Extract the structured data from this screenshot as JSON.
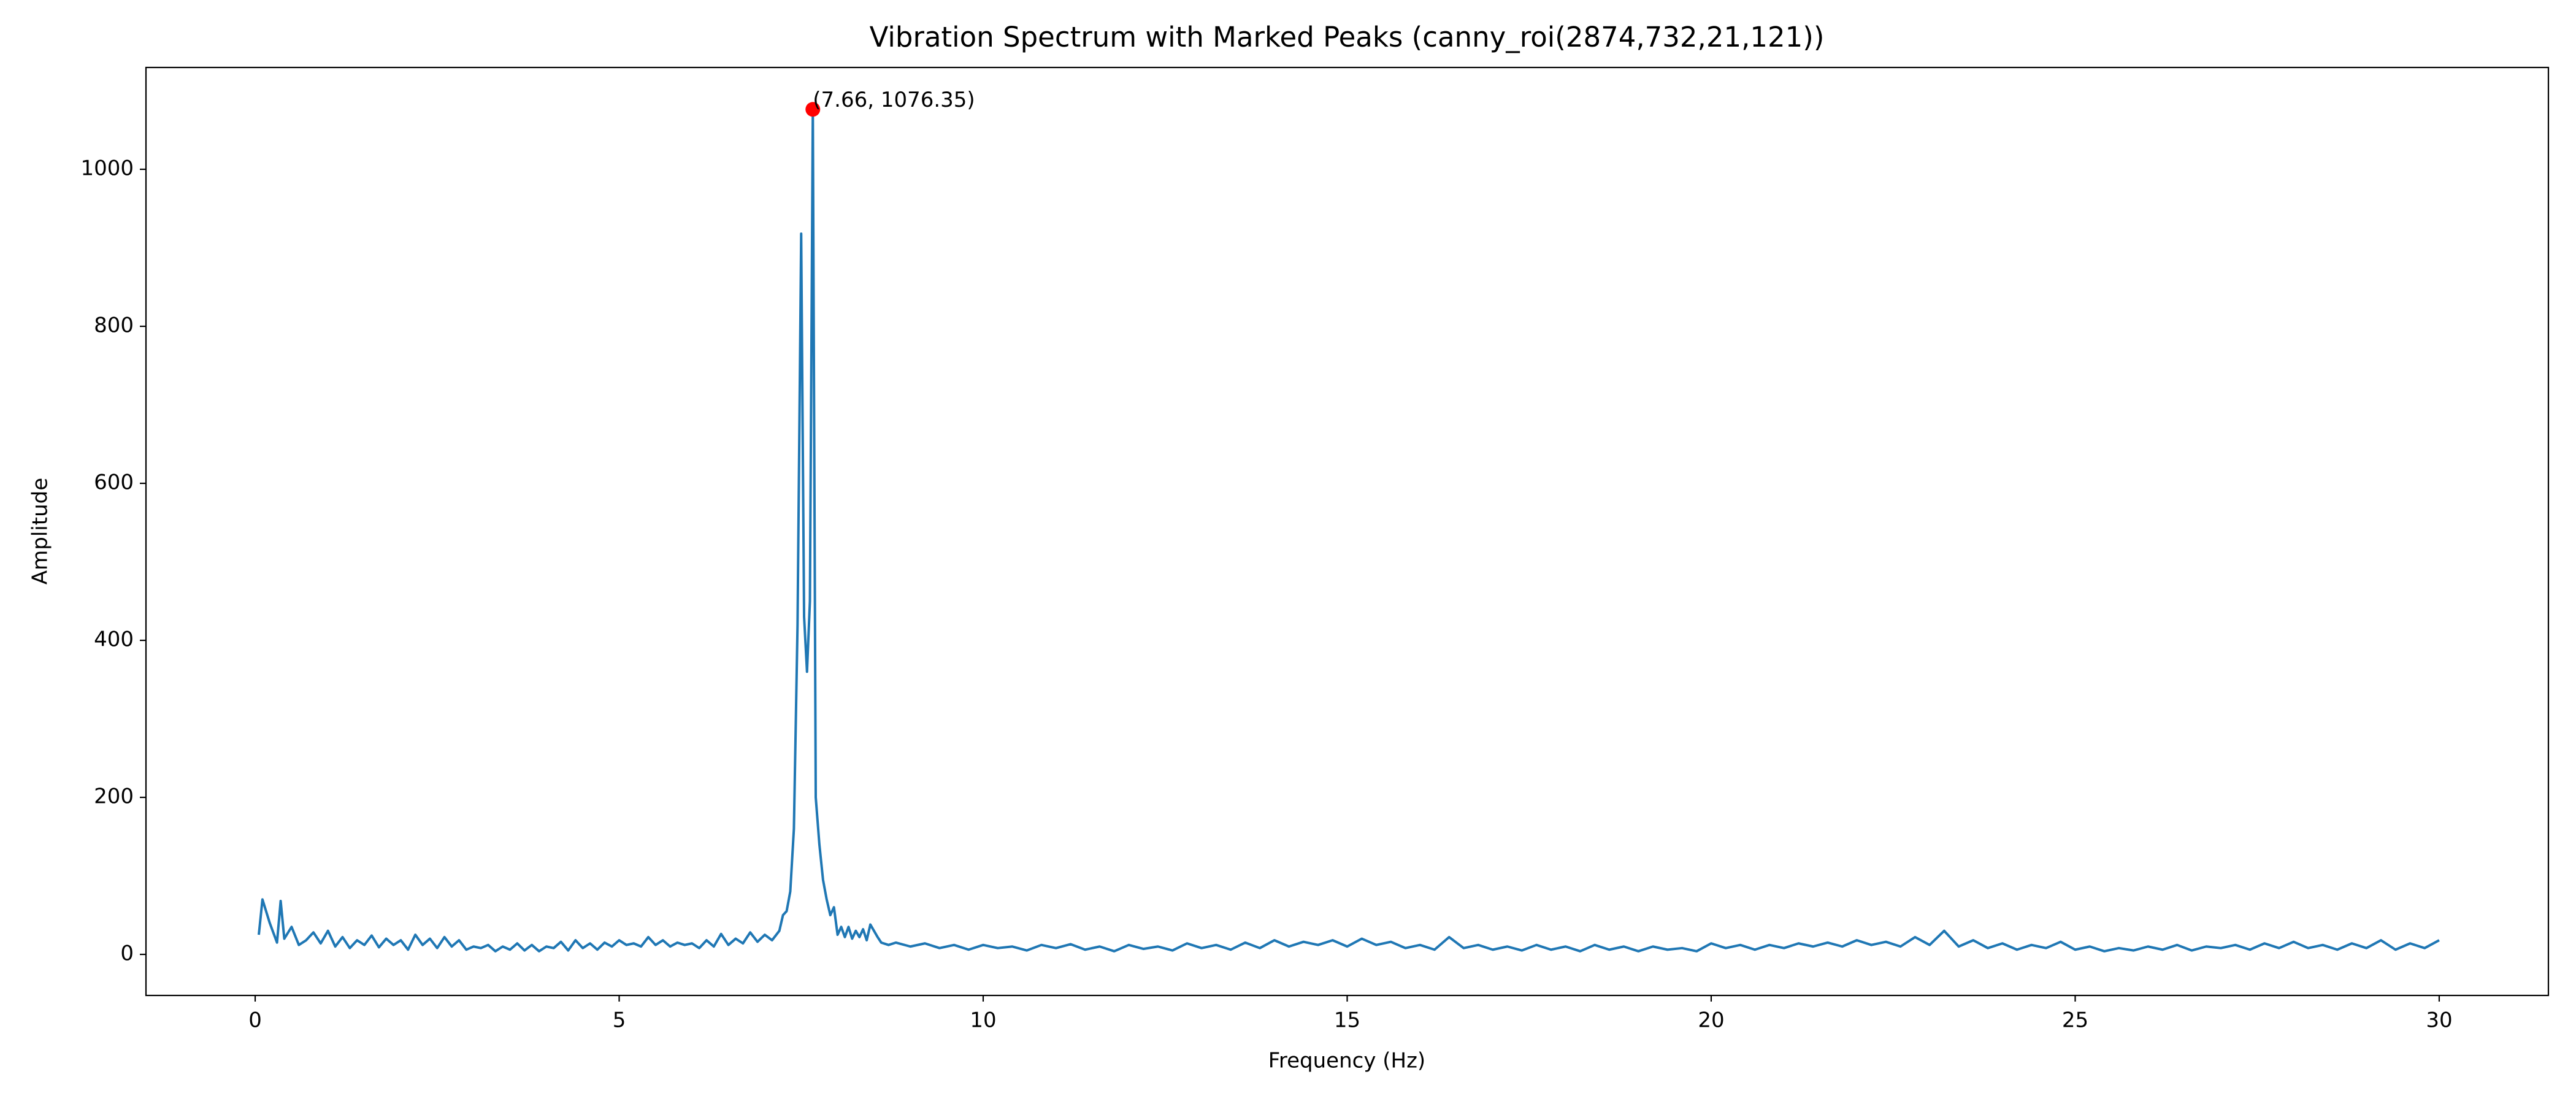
{
  "chart_data": {
    "type": "line",
    "title": "Vibration Spectrum with Marked Peaks (canny_roi(2874,732,21,121))",
    "x_label": "Frequency (Hz)",
    "y_label": "Amplitude",
    "xlim": [
      -1.5,
      31.5
    ],
    "ylim": [
      -52.3,
      1129.7
    ],
    "xticks": [
      0,
      5,
      10,
      15,
      20,
      25,
      30
    ],
    "yticks": [
      0,
      200,
      400,
      600,
      800,
      1000
    ],
    "grid": false,
    "x": [
      0.05,
      0.1,
      0.2,
      0.3,
      0.35,
      0.4,
      0.5,
      0.6,
      0.7,
      0.8,
      0.9,
      1.0,
      1.1,
      1.2,
      1.3,
      1.4,
      1.5,
      1.6,
      1.7,
      1.8,
      1.9,
      2.0,
      2.1,
      2.2,
      2.3,
      2.4,
      2.5,
      2.6,
      2.7,
      2.8,
      2.9,
      3.0,
      3.1,
      3.2,
      3.3,
      3.4,
      3.5,
      3.6,
      3.7,
      3.8,
      3.9,
      4.0,
      4.1,
      4.2,
      4.3,
      4.4,
      4.5,
      4.6,
      4.7,
      4.8,
      4.9,
      5.0,
      5.1,
      5.2,
      5.3,
      5.4,
      5.5,
      5.6,
      5.7,
      5.8,
      5.9,
      6.0,
      6.1,
      6.2,
      6.3,
      6.4,
      6.5,
      6.6,
      6.7,
      6.8,
      6.9,
      7.0,
      7.1,
      7.2,
      7.25,
      7.3,
      7.35,
      7.4,
      7.45,
      7.5,
      7.54,
      7.58,
      7.62,
      7.66,
      7.7,
      7.75,
      7.8,
      7.85,
      7.9,
      7.95,
      8.0,
      8.05,
      8.1,
      8.15,
      8.2,
      8.25,
      8.3,
      8.35,
      8.4,
      8.45,
      8.5,
      8.55,
      8.6,
      8.7,
      8.8,
      9.0,
      9.2,
      9.4,
      9.6,
      9.8,
      10.0,
      10.2,
      10.4,
      10.6,
      10.8,
      11.0,
      11.2,
      11.4,
      11.6,
      11.8,
      12.0,
      12.2,
      12.4,
      12.6,
      12.8,
      13.0,
      13.2,
      13.4,
      13.6,
      13.8,
      14.0,
      14.2,
      14.4,
      14.6,
      14.8,
      15.0,
      15.2,
      15.4,
      15.6,
      15.8,
      16.0,
      16.2,
      16.4,
      16.6,
      16.8,
      17.0,
      17.2,
      17.4,
      17.6,
      17.8,
      18.0,
      18.2,
      18.4,
      18.6,
      18.8,
      19.0,
      19.2,
      19.4,
      19.6,
      19.8,
      20.0,
      20.2,
      20.4,
      20.6,
      20.8,
      21.0,
      21.2,
      21.4,
      21.6,
      21.8,
      22.0,
      22.2,
      22.4,
      22.6,
      22.8,
      23.0,
      23.2,
      23.4,
      23.6,
      23.8,
      24.0,
      24.2,
      24.4,
      24.6,
      24.8,
      25.0,
      25.2,
      25.4,
      25.6,
      25.8,
      26.0,
      26.2,
      26.4,
      26.6,
      26.8,
      27.0,
      27.2,
      27.4,
      27.6,
      27.8,
      28.0,
      28.2,
      28.4,
      28.6,
      28.8,
      29.0,
      29.2,
      29.4,
      29.6,
      29.8,
      30.0
    ],
    "series": [
      {
        "color": "#1f77b4",
        "values": [
          25,
          70,
          40,
          15,
          68,
          20,
          35,
          12,
          18,
          28,
          14,
          30,
          10,
          22,
          8,
          18,
          12,
          24,
          9,
          20,
          12,
          18,
          6,
          25,
          12,
          20,
          8,
          22,
          10,
          18,
          6,
          10,
          8,
          12,
          4,
          10,
          6,
          14,
          5,
          12,
          4,
          10,
          8,
          16,
          5,
          18,
          8,
          14,
          6,
          15,
          10,
          18,
          12,
          14,
          10,
          22,
          12,
          18,
          10,
          15,
          12,
          14,
          8,
          18,
          10,
          26,
          12,
          20,
          14,
          28,
          16,
          25,
          18,
          30,
          50,
          55,
          80,
          160,
          420,
          918,
          430,
          360,
          450,
          1076.35,
          200,
          140,
          95,
          70,
          50,
          60,
          25,
          35,
          22,
          35,
          20,
          30,
          22,
          32,
          18,
          38,
          30,
          22,
          15,
          12,
          15,
          10,
          14,
          8,
          12,
          6,
          12,
          8,
          10,
          5,
          12,
          8,
          13,
          6,
          10,
          4,
          12,
          7,
          10,
          5,
          14,
          8,
          12,
          6,
          15,
          8,
          18,
          10,
          16,
          12,
          18,
          10,
          20,
          12,
          16,
          8,
          12,
          6,
          22,
          8,
          12,
          6,
          10,
          5,
          12,
          6,
          10,
          4,
          12,
          6,
          10,
          4,
          10,
          6,
          8,
          4,
          14,
          8,
          12,
          6,
          12,
          8,
          14,
          10,
          15,
          10,
          18,
          12,
          16,
          10,
          22,
          12,
          30,
          10,
          18,
          8,
          14,
          6,
          12,
          8,
          16,
          6,
          10,
          4,
          8,
          5,
          10,
          6,
          12,
          5,
          10,
          8,
          12,
          6,
          14,
          8,
          16,
          8,
          12,
          6,
          14,
          8,
          18,
          6,
          14,
          8,
          18
        ]
      }
    ],
    "peaks": [
      {
        "x": 7.66,
        "y": 1076.35,
        "label": "(7.66, 1076.35)",
        "color": "#ff0000"
      }
    ]
  }
}
